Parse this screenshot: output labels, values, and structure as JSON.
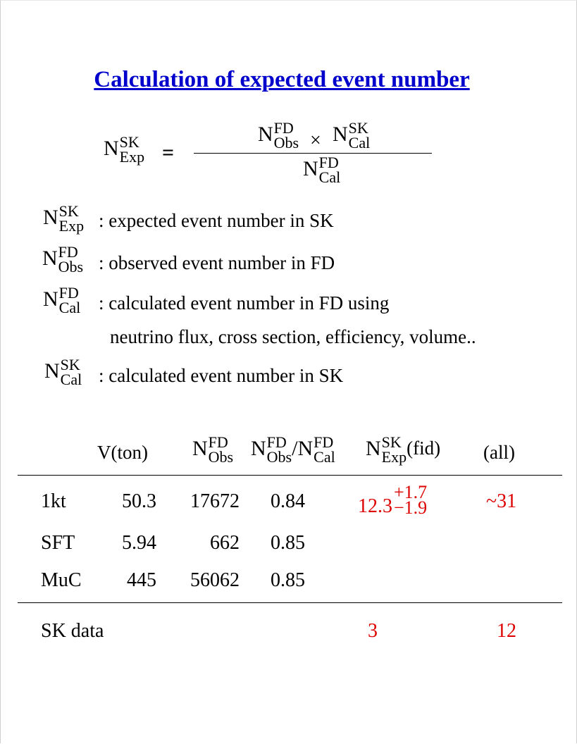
{
  "title": "Calculation of expected event number",
  "symbol": {
    "N": "N",
    "sk": "SK",
    "fd": "FD",
    "exp": "Exp",
    "obs": "Obs",
    "cal": "Cal"
  },
  "formula": {
    "equals": "=",
    "times": "×",
    "slash": "/"
  },
  "definitions": [
    {
      "text": ": expected event number in SK"
    },
    {
      "text": ": observed event number in FD"
    },
    {
      "text": ": calculated event number in FD using"
    },
    {
      "text": "neutrino flux, cross section, efficiency, volume.."
    },
    {
      "text": ": calculated event number in SK"
    }
  ],
  "table": {
    "headers": {
      "volume": "V(ton)",
      "fid": "(fid)",
      "all": "(all)"
    },
    "rows": [
      {
        "name": "1kt",
        "volume": "50.3",
        "nobs": "17672",
        "ratio": "0.84",
        "exp_central": "12.3",
        "exp_plus": "+1.7",
        "exp_minus": "−1.9",
        "all": "~31"
      },
      {
        "name": "SFT",
        "volume": "5.94",
        "nobs": "662",
        "ratio": "0.85"
      },
      {
        "name": "MuC",
        "volume": "445",
        "nobs": "56062",
        "ratio": "0.85"
      }
    ],
    "data_row": {
      "name": "SK data",
      "fid": "3",
      "all": "12"
    }
  },
  "colors": {
    "title": "#0000cc",
    "highlight": "#dd0000"
  }
}
